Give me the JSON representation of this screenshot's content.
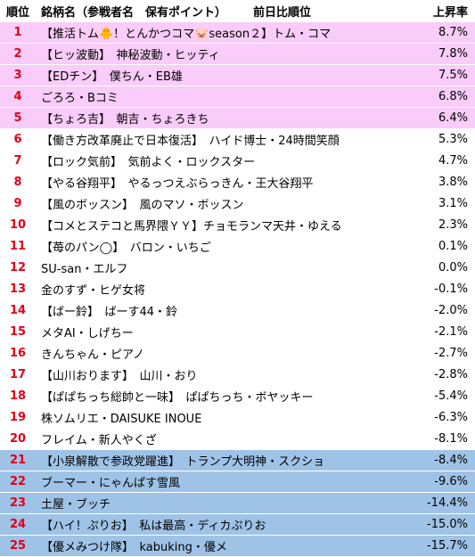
{
  "header": {
    "rank": "順位",
    "name": "銘柄名（参戦者名　保有ポイント）",
    "prev": "前日比順位",
    "rate": "上昇率"
  },
  "rows": [
    {
      "rank": "1",
      "name": "【推活トム🐥！とんかつコマ🐷season２】トム・コマ",
      "rate": "8.7%",
      "group": "top"
    },
    {
      "rank": "2",
      "name": "【ヒッ波動】　神秘波動・ヒッティ",
      "rate": "7.8%",
      "group": "top"
    },
    {
      "rank": "3",
      "name": "【EDチン】　僕ちん・EB雄",
      "rate": "7.5%",
      "group": "top"
    },
    {
      "rank": "4",
      "name": "ごろろ・Bコミ",
      "rate": "6.8%",
      "group": "top"
    },
    {
      "rank": "5",
      "name": "【ちょろ吉】　朝吉・ちょろきち",
      "rate": "6.4%",
      "group": "top"
    },
    {
      "rank": "6",
      "name": "【働き方改革廃止で日本復活】　ハイド博士・24時間笑顔",
      "rate": "5.3%",
      "group": "mid"
    },
    {
      "rank": "7",
      "name": "【ロック気前】　気前よく・ロックスター",
      "rate": "4.7%",
      "group": "mid"
    },
    {
      "rank": "8",
      "name": "【やる谷翔平】　やるっつえぶらっきん・王大谷翔平",
      "rate": "3.8%",
      "group": "mid"
    },
    {
      "rank": "9",
      "name": "【風のボッスン】　風のマソ・ボッスン",
      "rate": "3.1%",
      "group": "mid"
    },
    {
      "rank": "10",
      "name": "【コメとステコと馬界隈ＹＹ】チョモランマ天井・ゆえる",
      "rate": "2.3%",
      "group": "mid"
    },
    {
      "rank": "11",
      "name": "【苺のパン◯】　バロン・いちご",
      "rate": "0.1%",
      "group": "mid"
    },
    {
      "rank": "12",
      "name": "SU-san・エルフ",
      "rate": "0.0%",
      "group": "mid"
    },
    {
      "rank": "13",
      "name": "金のすず・ヒゲ女将",
      "rate": "-0.1%",
      "group": "mid"
    },
    {
      "rank": "14",
      "name": "【ばー鈴】　ばーす44・鈴",
      "rate": "-2.0%",
      "group": "mid"
    },
    {
      "rank": "15",
      "name": "メタAI・しげちー",
      "rate": "-2.1%",
      "group": "mid"
    },
    {
      "rank": "16",
      "name": "きんちゃん・ピアノ",
      "rate": "-2.7%",
      "group": "mid"
    },
    {
      "rank": "17",
      "name": "【山川おります】　山川・おり",
      "rate": "-2.8%",
      "group": "mid"
    },
    {
      "rank": "18",
      "name": "【ぱぱちっち総帥と一味】　ぱぱちっち・ボヤッキー",
      "rate": "-5.4%",
      "group": "mid"
    },
    {
      "rank": "19",
      "name": "株ソムリエ・DAISUKE INOUE",
      "rate": "-6.3%",
      "group": "mid"
    },
    {
      "rank": "20",
      "name": "フレイム・新人やくざ",
      "rate": "-8.1%",
      "group": "mid"
    },
    {
      "rank": "21",
      "name": "【小泉解散で参政党躍進】　トランプ大明神・スクショ",
      "rate": "-8.4%",
      "group": "bottom"
    },
    {
      "rank": "22",
      "name": "ブーマー・にゃんぱす雪風",
      "rate": "-9.6%",
      "group": "bottom"
    },
    {
      "rank": "23",
      "name": "土屋・ブッチ",
      "rate": "-14.4%",
      "group": "bottom"
    },
    {
      "rank": "24",
      "name": "【ハイ！ぷりお】　私は最高・ディカぷりお",
      "rate": "-15.0%",
      "group": "bottom"
    },
    {
      "rank": "25",
      "name": "【優メみつけ隊】　kabuking・優メ",
      "rate": "-15.7%",
      "group": "bottom"
    }
  ]
}
